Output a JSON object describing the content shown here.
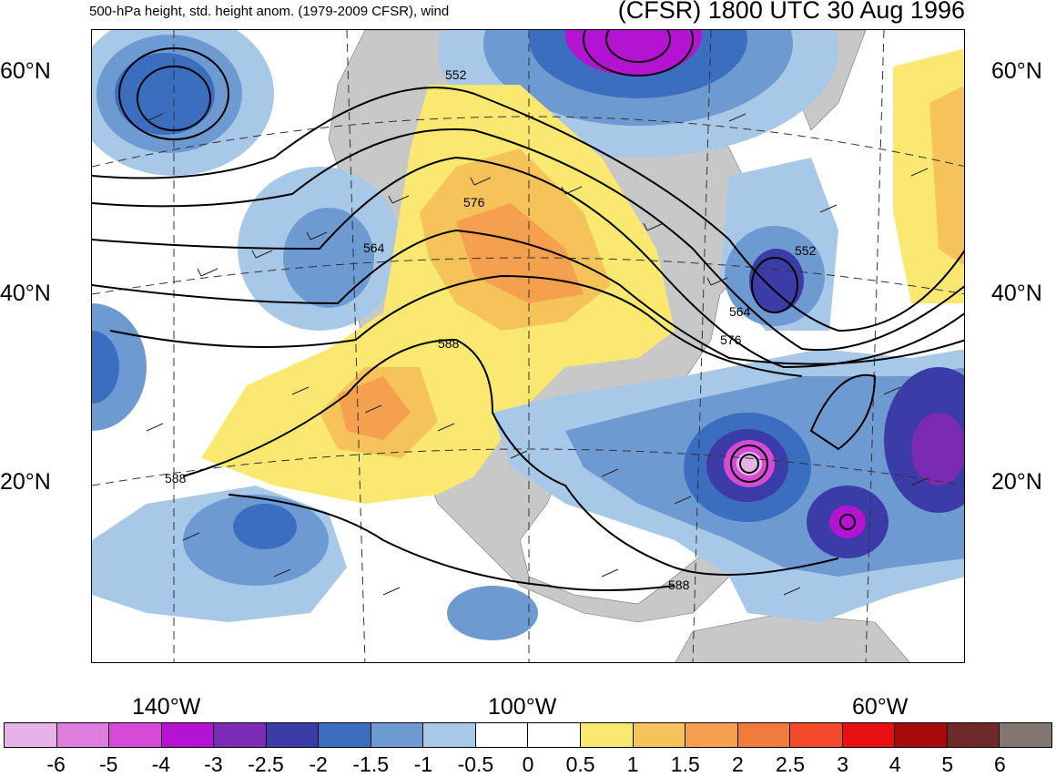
{
  "header": {
    "title_left": "500-hPa height, std. height anom. (1979-2009 CFSR), wind",
    "title_right": "(CFSR) 1800 UTC 30 Aug 1996"
  },
  "map": {
    "lat_labels_left": [
      "60°N",
      "40°N",
      "20°N"
    ],
    "lat_labels_right": [
      "60°N",
      "40°N",
      "20°N"
    ],
    "lon_labels": [
      "140°W",
      "100°W",
      "60°W"
    ],
    "contour_labels": [
      "552",
      "564",
      "576",
      "588",
      "552",
      "564",
      "576",
      "588",
      "588"
    ],
    "land_color": "#c8c8c8",
    "ocean_color": "#ffffff"
  },
  "colorbar": {
    "colors": [
      "#e6b3e6",
      "#e07ee0",
      "#d64ad6",
      "#b414d2",
      "#7a2ab4",
      "#3c3ca8",
      "#3c6ec0",
      "#6e9ad2",
      "#a8c8e8",
      "#ffffff",
      "#ffffff",
      "#fbe870",
      "#f5c35a",
      "#f4a04e",
      "#f07b3c",
      "#f44a2a",
      "#e81010",
      "#a80a0a",
      "#6e2a2a",
      "#827670"
    ],
    "labels": [
      "-6",
      "-5",
      "-4",
      "-3",
      "-2.5",
      "-2",
      "-1.5",
      "-1",
      "-0.5",
      "0",
      "0.5",
      "1",
      "1.5",
      "2",
      "2.5",
      "3",
      "4",
      "5",
      "6"
    ]
  }
}
